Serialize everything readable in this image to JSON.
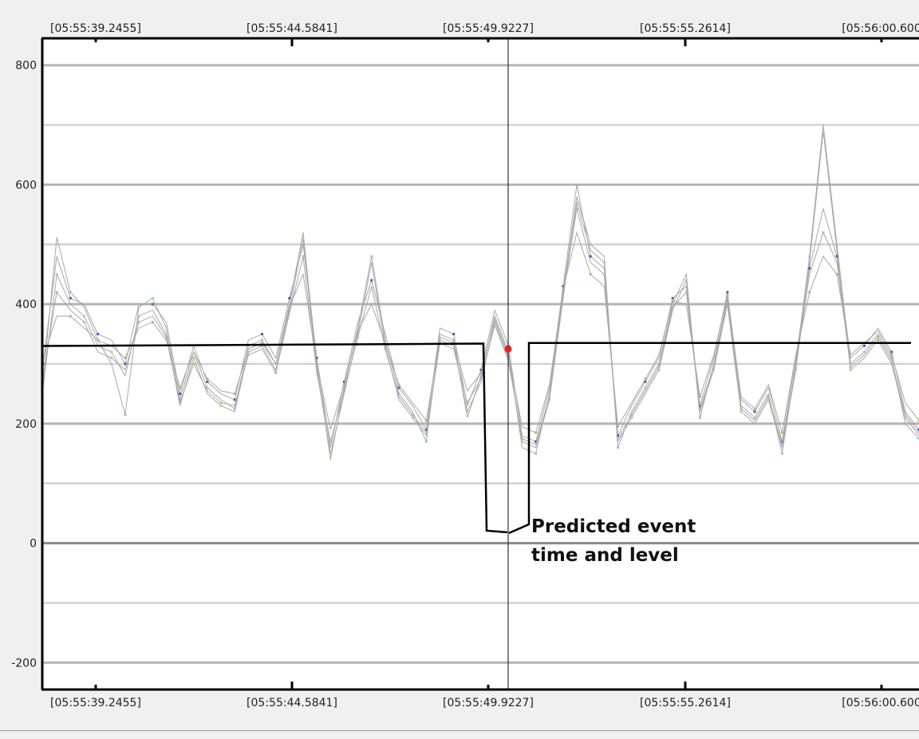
{
  "chart_data": {
    "type": "line",
    "title": "",
    "xlabel": "",
    "ylabel": "",
    "x_tick_labels": [
      "[05:55:39.2455]",
      "[05:55:44.5841]",
      "[05:55:49.9227]",
      "[05:55:55.2614]",
      "[05:56:00.600"
    ],
    "y_ticks": [
      800,
      600,
      400,
      200,
      0,
      -200
    ],
    "ylim": [
      -245,
      845
    ],
    "grid": true,
    "annotation": {
      "text_line1": "Predicted event",
      "text_line2": "time and level",
      "level_before": 330,
      "level_after": 335,
      "event_marker_value": 325
    },
    "colors": {
      "series": "#a8a8a8",
      "marker": "#3a5fcd",
      "accent_marker": "#e82020",
      "annotation_line": "#000000"
    },
    "series": [
      {
        "values": [
          270,
          512,
          420,
          395,
          340,
          300,
          215,
          395,
          410,
          360,
          240,
          320,
          260,
          240,
          225,
          330,
          340,
          300,
          400,
          520,
          300,
          140,
          260,
          360,
          480,
          340,
          250,
          220,
          170,
          350,
          340,
          210,
          280,
          380,
          320,
          160,
          150,
          250,
          420,
          580,
          500,
          480,
          160,
          220,
          260,
          300,
          400,
          450,
          210,
          300,
          410,
          230,
          210,
          250,
          150,
          300,
          480,
          700,
          500,
          300,
          320,
          350,
          310,
          200,
          175
        ]
      },
      {
        "values": [
          260,
          450,
          400,
          380,
          330,
          320,
          280,
          380,
          390,
          350,
          230,
          310,
          250,
          230,
          220,
          320,
          330,
          290,
          390,
          510,
          290,
          150,
          250,
          350,
          470,
          330,
          240,
          210,
          180,
          340,
          330,
          220,
          270,
          370,
          310,
          170,
          160,
          240,
          410,
          570,
          490,
          470,
          170,
          210,
          250,
          290,
          390,
          440,
          220,
          290,
          400,
          220,
          200,
          240,
          160,
          290,
          470,
          690,
          490,
          290,
          310,
          340,
          300,
          210,
          180
        ]
      },
      {
        "values": [
          300,
          480,
          410,
          400,
          350,
          340,
          300,
          400,
          400,
          370,
          250,
          330,
          270,
          250,
          240,
          340,
          350,
          310,
          410,
          500,
          310,
          160,
          270,
          370,
          440,
          350,
          260,
          230,
          190,
          360,
          350,
          230,
          290,
          390,
          330,
          180,
          170,
          260,
          430,
          600,
          480,
          460,
          180,
          230,
          270,
          310,
          410,
          430,
          230,
          310,
          420,
          240,
          220,
          260,
          170,
          310,
          460,
          560,
          480,
          310,
          330,
          360,
          320,
          220,
          190
        ]
      },
      {
        "values": [
          280,
          420,
          390,
          370,
          320,
          310,
          290,
          370,
          380,
          345,
          235,
          300,
          255,
          235,
          230,
          315,
          325,
          285,
          385,
          480,
          285,
          170,
          255,
          345,
          430,
          325,
          245,
          215,
          185,
          335,
          325,
          235,
          275,
          365,
          305,
          175,
          165,
          245,
          415,
          560,
          470,
          450,
          175,
          215,
          255,
          295,
          395,
          420,
          225,
          295,
          405,
          225,
          205,
          245,
          165,
          295,
          450,
          520,
          470,
          295,
          315,
          345,
          305,
          215,
          185
        ]
      },
      {
        "values": [
          310,
          380,
          380,
          360,
          340,
          330,
          310,
          360,
          370,
          340,
          260,
          320,
          275,
          255,
          250,
          325,
          335,
          300,
          395,
          450,
          300,
          190,
          265,
          355,
          400,
          335,
          265,
          235,
          205,
          345,
          335,
          255,
          285,
          375,
          315,
          195,
          185,
          265,
          425,
          520,
          450,
          430,
          195,
          235,
          275,
          315,
          405,
          400,
          245,
          315,
          415,
          245,
          225,
          265,
          185,
          315,
          420,
          480,
          450,
          315,
          335,
          355,
          315,
          235,
          205
        ]
      }
    ]
  }
}
